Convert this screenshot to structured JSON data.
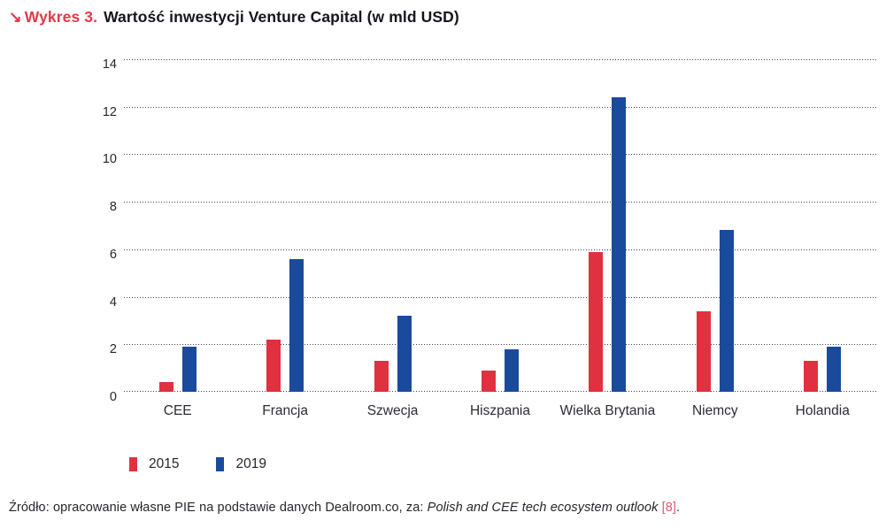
{
  "title": {
    "arrow": "↘",
    "label": "Wykres 3.",
    "text": "Wartość inwestycji Venture Capital (w mld USD)"
  },
  "colors": {
    "series_2015": "#e1303f",
    "series_2019": "#1a4a9b",
    "title_accent": "#e4394a",
    "text_dark": "#15151f",
    "grid": "#47474f",
    "source_ref": "#e4596a"
  },
  "chart_data": {
    "type": "bar",
    "title": "Wartość inwestycji Venture Capital (w mld USD)",
    "categories": [
      "CEE",
      "Francja",
      "Szwecja",
      "Hiszpania",
      "Wielka Brytania",
      "Niemcy",
      "Holandia"
    ],
    "series": [
      {
        "name": "2015",
        "color": "#e1303f",
        "values": [
          0.4,
          2.2,
          1.3,
          0.9,
          5.9,
          3.4,
          1.3
        ]
      },
      {
        "name": "2019",
        "color": "#1a4a9b",
        "values": [
          1.9,
          5.6,
          3.2,
          1.8,
          12.4,
          6.8,
          1.9
        ]
      }
    ],
    "xlabel": "",
    "ylabel": "",
    "ylim": [
      0,
      14
    ],
    "yticks": [
      0,
      2,
      4,
      6,
      8,
      10,
      12,
      14
    ],
    "grid": "horizontal-dotted",
    "legend_position": "bottom-left"
  },
  "legend": {
    "items": [
      {
        "label": "2015",
        "color": "#e1303f"
      },
      {
        "label": "2019",
        "color": "#1a4a9b"
      }
    ]
  },
  "source": {
    "prefix": "Źródło: opracowanie własne PIE na podstawie danych Dealroom.co, za: ",
    "italic": "Polish and CEE tech ecosystem outlook",
    "ref": "[8]",
    "suffix": "."
  }
}
